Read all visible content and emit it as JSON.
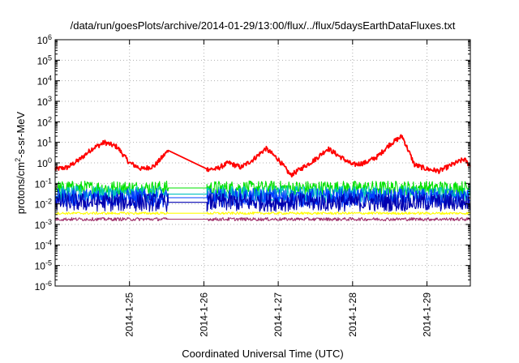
{
  "chart_data": {
    "type": "line",
    "title": "/data/run/goesPlots/archive/2014-01-29/13:00/flux/../flux/5daysEarthDataFluxes.txt",
    "xlabel": "Coordinated Universal Time (UTC)",
    "ylabel": {
      "base": "protons/cm",
      "sup": "2",
      "rest": "-s-sr-MeV"
    },
    "yscale": "log",
    "ylim": [
      1e-06,
      1000000.0
    ],
    "xlim": [
      "2014-01-24T00:00",
      "2014-01-29T14:00"
    ],
    "grid": true,
    "y_ticks": [
      {
        "base": "10",
        "exp": "-6",
        "value": 1e-06
      },
      {
        "base": "10",
        "exp": "-5",
        "value": 1e-05
      },
      {
        "base": "10",
        "exp": "-4",
        "value": 0.0001
      },
      {
        "base": "10",
        "exp": "-3",
        "value": 0.001
      },
      {
        "base": "10",
        "exp": "-2",
        "value": 0.01
      },
      {
        "base": "10",
        "exp": "-1",
        "value": 0.1
      },
      {
        "base": "10",
        "exp": "0",
        "value": 1
      },
      {
        "base": "10",
        "exp": "1",
        "value": 10
      },
      {
        "base": "10",
        "exp": "2",
        "value": 100
      },
      {
        "base": "10",
        "exp": "3",
        "value": 1000
      },
      {
        "base": "10",
        "exp": "4",
        "value": 10000
      },
      {
        "base": "10",
        "exp": "5",
        "value": 100000
      },
      {
        "base": "10",
        "exp": "6",
        "value": 1000000
      }
    ],
    "x_ticks": [
      "2014-1-25",
      "2014-1-26",
      "2014-1-27",
      "2014-1-28",
      "2014-1-29"
    ],
    "data_gap": {
      "start": "2014-01-25T12:30",
      "end": "2014-01-26T01:00"
    },
    "series": [
      {
        "color": "#ff0000",
        "x": [
          "2014-01-24T00:00",
          "2014-01-24T04:00",
          "2014-01-24T08:00",
          "2014-01-24T12:00",
          "2014-01-24T16:00",
          "2014-01-24T20:00",
          "2014-01-25T00:00",
          "2014-01-25T04:00",
          "2014-01-25T08:00",
          "2014-01-25T12:30",
          "2014-01-26T01:00",
          "2014-01-26T04:00",
          "2014-01-26T08:00",
          "2014-01-26T12:00",
          "2014-01-26T16:00",
          "2014-01-26T20:00",
          "2014-01-27T00:00",
          "2014-01-27T04:00",
          "2014-01-27T08:00",
          "2014-01-27T12:00",
          "2014-01-27T16:00",
          "2014-01-27T20:00",
          "2014-01-28T00:00",
          "2014-01-28T04:00",
          "2014-01-28T08:00",
          "2014-01-28T12:00",
          "2014-01-28T16:00",
          "2014-01-28T20:00",
          "2014-01-29T00:00",
          "2014-01-29T04:00",
          "2014-01-29T08:00",
          "2014-01-29T12:00",
          "2014-01-29T14:00"
        ],
        "values": [
          0.5,
          0.6,
          1.5,
          5,
          10,
          6,
          1.0,
          0.5,
          0.7,
          4,
          0.5,
          0.5,
          1,
          0.6,
          1.5,
          5,
          1.5,
          0.25,
          0.6,
          1.5,
          5,
          2,
          0.8,
          1,
          2,
          8,
          20,
          0.8,
          0.5,
          0.4,
          0.8,
          1.5,
          0.7
        ]
      },
      {
        "color": "#00e000",
        "x": [
          "2014-01-24T00:00",
          "2014-01-29T14:00"
        ],
        "values": [
          0.06,
          0.06
        ]
      },
      {
        "color": "#00c0c0",
        "x": [
          "2014-01-24T00:00",
          "2014-01-29T14:00"
        ],
        "values": [
          0.03,
          0.03
        ]
      },
      {
        "color": "#0040ff",
        "x": [
          "2014-01-24T00:00",
          "2014-01-29T14:00"
        ],
        "values": [
          0.02,
          0.02
        ]
      },
      {
        "color": "#0000b0",
        "x": [
          "2014-01-24T00:00",
          "2014-01-29T14:00"
        ],
        "values": [
          0.012,
          0.012
        ]
      },
      {
        "color": "#ffff00",
        "x": [
          "2014-01-24T00:00",
          "2014-01-29T14:00"
        ],
        "values": [
          0.0035,
          0.0035
        ]
      },
      {
        "color": "#a0306a",
        "x": [
          "2014-01-24T00:00",
          "2014-01-29T14:00"
        ],
        "values": [
          0.0018,
          0.0018
        ]
      }
    ]
  }
}
